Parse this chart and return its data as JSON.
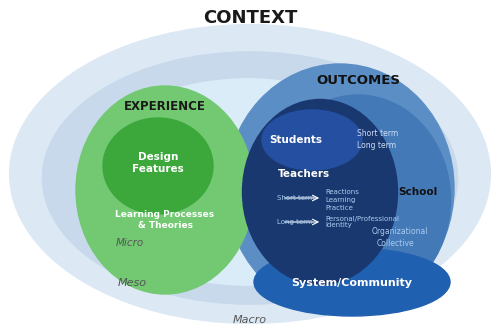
{
  "bg_color": "#ffffff",
  "context_label": "CONTEXT",
  "macro_label": "Macro",
  "meso_label": "Meso",
  "micro_label": "Micro",
  "experience_label": "EXPERIENCE",
  "outcomes_label": "OUTCOMES",
  "design_features_label": "Design\nFeatures",
  "learning_processes_label": "Learning Processes\n& Theories",
  "students_label": "Students",
  "teachers_label": "Teachers",
  "school_label": "School",
  "system_community_label": "System/Community",
  "short_term_label": "Short term",
  "long_term_label": "Long term",
  "reactions_label": "Reactions",
  "learning_label": "Learning",
  "practice_label": "Practice",
  "personal_label": "Personal/Professional\nIdentity",
  "organizational_label": "Organizational",
  "collective_label": "Collective",
  "students_short": "Short term",
  "students_long": "Long term"
}
